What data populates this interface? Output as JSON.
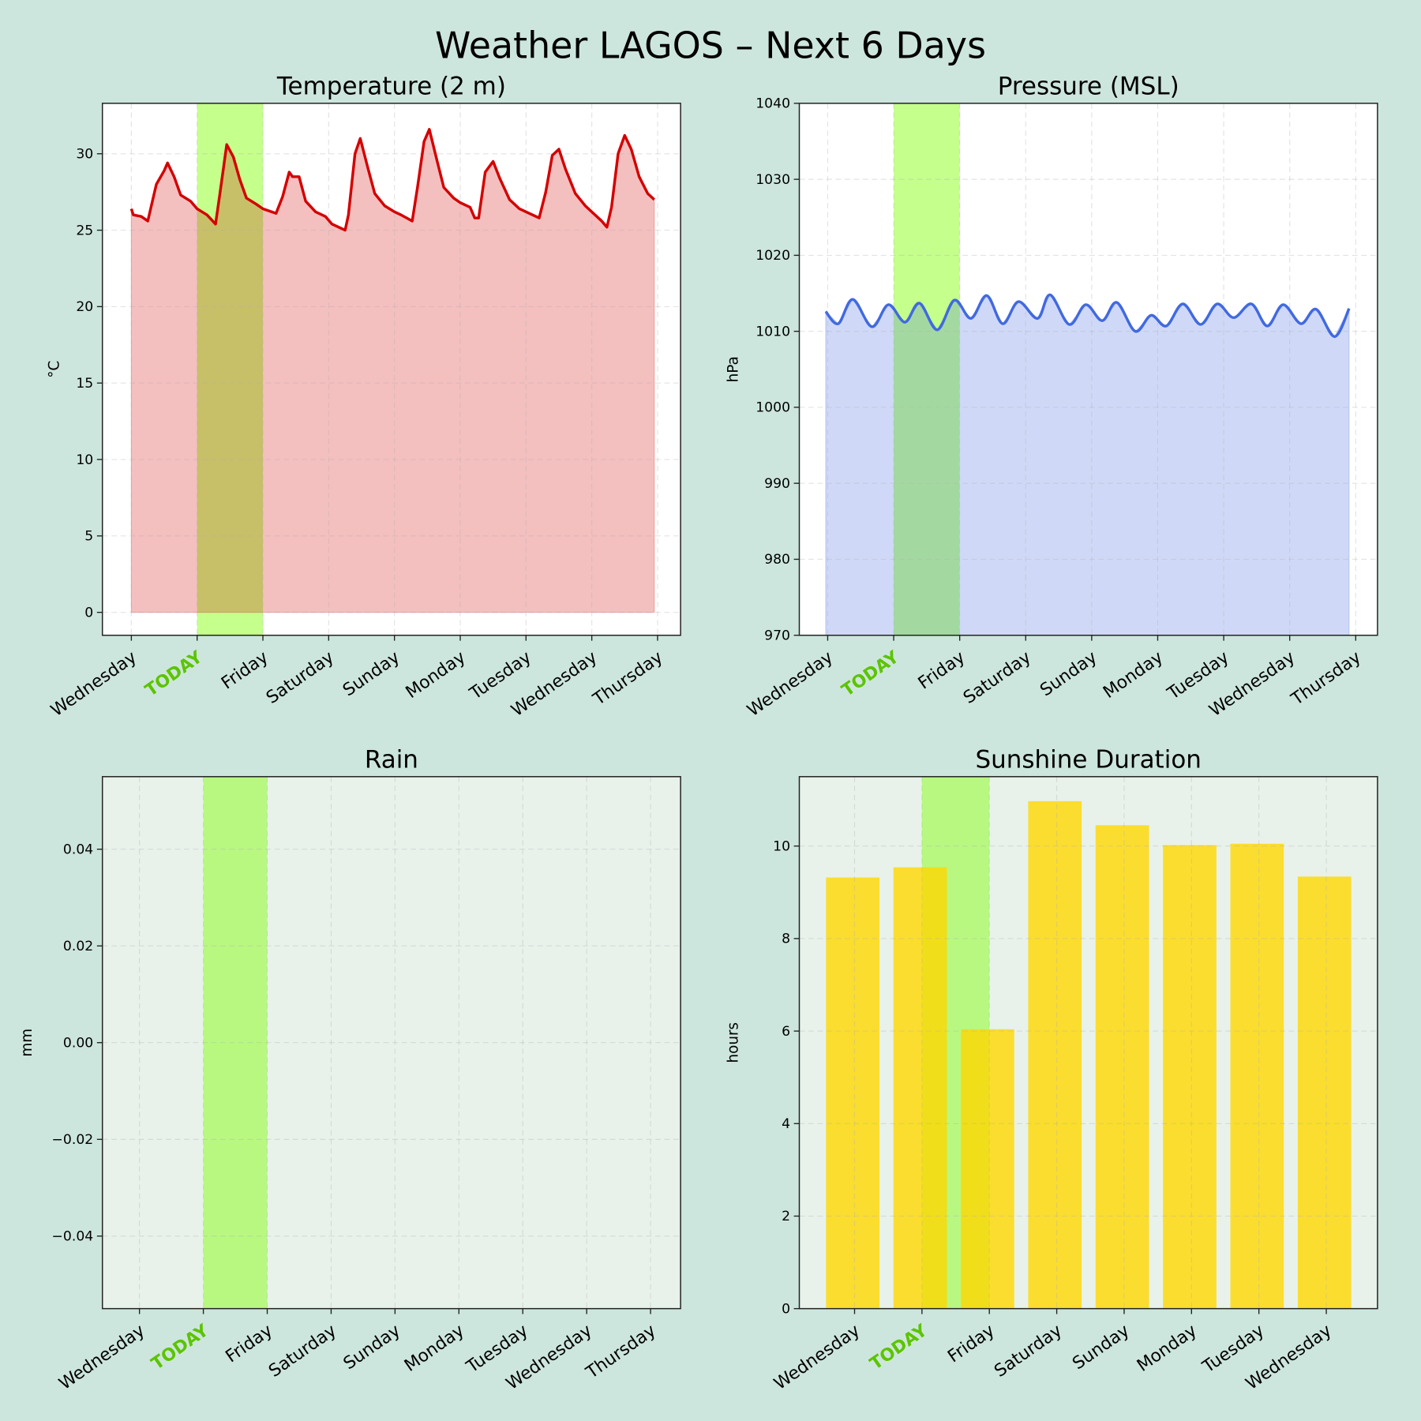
{
  "figure": {
    "title": "Weather LAGOS – Next 6 Days",
    "background": "#cde6dd",
    "today_color": "#5cc400",
    "highlight_color": "#7fff00"
  },
  "chart_data": [
    {
      "type": "area",
      "title": "Temperature (2 m)",
      "xlabel": "",
      "ylabel": "°C",
      "ylim": [
        -1.5,
        33.3
      ],
      "xlim": [
        -0.44,
        8.35
      ],
      "yticks": [
        0,
        5,
        10,
        15,
        20,
        25,
        30
      ],
      "xtick_labels": [
        "Wednesday",
        "TODAY",
        "Friday",
        "Saturday",
        "Sunday",
        "Monday",
        "Tuesday",
        "Wednesday",
        "Thursday"
      ],
      "today_index": 1,
      "highlight_range_days": [
        1,
        2
      ],
      "grid": true,
      "color": "#d40000",
      "x_unit": "days",
      "points": [
        [
          0,
          26.4
        ],
        [
          0.03,
          26.0
        ],
        [
          0.15,
          25.9
        ],
        [
          0.25,
          25.6
        ],
        [
          0.38,
          28.0
        ],
        [
          0.5,
          28.9
        ],
        [
          0.55,
          29.4
        ],
        [
          0.65,
          28.5
        ],
        [
          0.75,
          27.3
        ],
        [
          0.9,
          26.9
        ],
        [
          1.0,
          26.4
        ],
        [
          1.15,
          26.0
        ],
        [
          1.28,
          25.4
        ],
        [
          1.35,
          27.5
        ],
        [
          1.45,
          30.6
        ],
        [
          1.55,
          29.8
        ],
        [
          1.65,
          28.3
        ],
        [
          1.75,
          27.1
        ],
        [
          1.9,
          26.7
        ],
        [
          2.0,
          26.4
        ],
        [
          2.2,
          26.1
        ],
        [
          2.3,
          27.2
        ],
        [
          2.4,
          28.8
        ],
        [
          2.45,
          28.5
        ],
        [
          2.55,
          28.5
        ],
        [
          2.65,
          26.9
        ],
        [
          2.8,
          26.2
        ],
        [
          2.95,
          25.9
        ],
        [
          3.05,
          25.4
        ],
        [
          3.25,
          25.0
        ],
        [
          3.3,
          26.0
        ],
        [
          3.4,
          30.0
        ],
        [
          3.48,
          31.0
        ],
        [
          3.6,
          29.0
        ],
        [
          3.7,
          27.4
        ],
        [
          3.85,
          26.6
        ],
        [
          4.0,
          26.2
        ],
        [
          4.1,
          26.0
        ],
        [
          4.27,
          25.6
        ],
        [
          4.35,
          27.8
        ],
        [
          4.45,
          30.8
        ],
        [
          4.53,
          31.6
        ],
        [
          4.65,
          29.5
        ],
        [
          4.75,
          27.8
        ],
        [
          4.9,
          27.1
        ],
        [
          5.0,
          26.8
        ],
        [
          5.15,
          26.5
        ],
        [
          5.22,
          25.8
        ],
        [
          5.28,
          25.8
        ],
        [
          5.38,
          28.8
        ],
        [
          5.5,
          29.5
        ],
        [
          5.6,
          28.4
        ],
        [
          5.75,
          27.0
        ],
        [
          5.9,
          26.4
        ],
        [
          6.05,
          26.1
        ],
        [
          6.2,
          25.8
        ],
        [
          6.3,
          27.5
        ],
        [
          6.4,
          29.9
        ],
        [
          6.5,
          30.3
        ],
        [
          6.6,
          29.0
        ],
        [
          6.75,
          27.4
        ],
        [
          6.9,
          26.6
        ],
        [
          7.0,
          26.2
        ],
        [
          7.15,
          25.6
        ],
        [
          7.23,
          25.2
        ],
        [
          7.3,
          26.5
        ],
        [
          7.4,
          30.0
        ],
        [
          7.5,
          31.2
        ],
        [
          7.6,
          30.3
        ],
        [
          7.72,
          28.5
        ],
        [
          7.85,
          27.4
        ],
        [
          7.95,
          27.0
        ]
      ]
    },
    {
      "type": "area",
      "title": "Pressure (MSL)",
      "xlabel": "",
      "ylabel": "hPa",
      "ylim": [
        970,
        1040
      ],
      "xlim": [
        -0.43,
        8.33
      ],
      "yticks": [
        970,
        980,
        990,
        1000,
        1010,
        1020,
        1030,
        1040
      ],
      "xtick_labels": [
        "Wednesday",
        "TODAY",
        "Friday",
        "Saturday",
        "Sunday",
        "Monday",
        "Tuesday",
        "Wednesday",
        "Thursday"
      ],
      "today_index": 1,
      "highlight_range_days": [
        1,
        2
      ],
      "grid": true,
      "color": "#4169e1",
      "x_unit": "days",
      "points": [
        [
          -0.03,
          1012.6
        ],
        [
          0.16,
          1011.0
        ],
        [
          0.38,
          1014.2
        ],
        [
          0.67,
          1010.6
        ],
        [
          0.92,
          1013.5
        ],
        [
          1.17,
          1011.2
        ],
        [
          1.39,
          1013.7
        ],
        [
          1.66,
          1010.2
        ],
        [
          1.92,
          1014.1
        ],
        [
          2.17,
          1011.7
        ],
        [
          2.41,
          1014.7
        ],
        [
          2.65,
          1011.0
        ],
        [
          2.89,
          1013.9
        ],
        [
          3.18,
          1011.7
        ],
        [
          3.37,
          1014.8
        ],
        [
          3.66,
          1010.9
        ],
        [
          3.91,
          1013.5
        ],
        [
          4.16,
          1011.4
        ],
        [
          4.38,
          1013.8
        ],
        [
          4.66,
          1010.0
        ],
        [
          4.9,
          1012.1
        ],
        [
          5.13,
          1010.7
        ],
        [
          5.38,
          1013.6
        ],
        [
          5.65,
          1010.9
        ],
        [
          5.9,
          1013.6
        ],
        [
          6.15,
          1011.8
        ],
        [
          6.42,
          1013.6
        ],
        [
          6.66,
          1010.7
        ],
        [
          6.9,
          1013.5
        ],
        [
          7.17,
          1011.0
        ],
        [
          7.4,
          1012.9
        ],
        [
          7.68,
          1009.3
        ],
        [
          7.9,
          1013.0
        ]
      ]
    },
    {
      "type": "bar",
      "title": "Rain",
      "xlabel": "",
      "ylabel": "mm",
      "ylim": [
        -0.055,
        0.055
      ],
      "xlim": [
        -0.58,
        8.47
      ],
      "yticks": [
        -0.04,
        -0.02,
        0.0,
        0.02,
        0.04
      ],
      "ytick_labels": [
        "−0.04",
        "−0.02",
        "0.00",
        "0.02",
        "0.04"
      ],
      "xtick_labels": [
        "Wednesday",
        "TODAY",
        "Friday",
        "Saturday",
        "Sunday",
        "Monday",
        "Tuesday",
        "Wednesday",
        "Thursday"
      ],
      "today_index": 1,
      "highlight_range_days": [
        1,
        2
      ],
      "grid": true,
      "values": [
        0,
        0,
        0,
        0,
        0,
        0,
        0,
        0,
        0
      ]
    },
    {
      "type": "bar",
      "title": "Sunshine Duration",
      "xlabel": "",
      "ylabel": "hours",
      "ylim": [
        0,
        11.5
      ],
      "xlim": [
        -0.82,
        7.76
      ],
      "yticks": [
        0,
        2,
        4,
        6,
        8,
        10
      ],
      "xtick_labels": [
        "Wednesday",
        "TODAY",
        "Friday",
        "Saturday",
        "Sunday",
        "Monday",
        "Tuesday",
        "Wednesday"
      ],
      "today_index": 1,
      "highlight_range_days": [
        1,
        2
      ],
      "grid": true,
      "color": "#ffd700",
      "categories": [
        "Wednesday",
        "TODAY",
        "Friday",
        "Saturday",
        "Sunday",
        "Monday",
        "Tuesday",
        "Wednesday"
      ],
      "values": [
        9.32,
        9.54,
        6.04,
        10.97,
        10.45,
        10.02,
        10.05,
        9.34
      ]
    }
  ]
}
